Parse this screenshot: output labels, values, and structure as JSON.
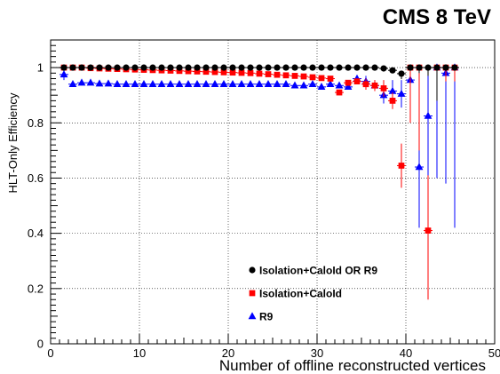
{
  "header": {
    "title": "CMS 8 TeV"
  },
  "chart_data": {
    "type": "scatter",
    "title": "",
    "xlabel": "Number of offline reconstructed vertices",
    "ylabel": "HLT-Only Efficiency",
    "xlim": [
      0,
      50
    ],
    "ylim": [
      0,
      1.1
    ],
    "x_ticks": [
      0,
      10,
      20,
      30,
      40,
      50
    ],
    "y_ticks": [
      0,
      0.2,
      0.4,
      0.6,
      0.8,
      1
    ],
    "x_tick_labels": [
      "0",
      "10",
      "20",
      "30",
      "40",
      "50"
    ],
    "y_tick_labels": [
      "0",
      "0.2",
      "0.4",
      "0.6",
      "0.8",
      "1"
    ],
    "grid": true,
    "legend_position": "lower-middle",
    "series": [
      {
        "name": "Isolation+CaloId OR R9",
        "color": "#000000",
        "marker": "circle",
        "x": [
          1.5,
          2.5,
          3.5,
          4.5,
          5.5,
          6.5,
          7.5,
          8.5,
          9.5,
          10.5,
          11.5,
          12.5,
          13.5,
          14.5,
          15.5,
          16.5,
          17.5,
          18.5,
          19.5,
          20.5,
          21.5,
          22.5,
          23.5,
          24.5,
          25.5,
          26.5,
          27.5,
          28.5,
          29.5,
          30.5,
          31.5,
          32.5,
          33.5,
          34.5,
          35.5,
          36.5,
          37.5,
          38.5,
          39.5,
          40.5,
          41.5,
          42.5,
          43.5,
          44.5,
          45.5
        ],
        "y": [
          1.0,
          1.0,
          1.0,
          1.0,
          1.0,
          1.0,
          1.0,
          1.0,
          1.0,
          1.0,
          1.0,
          1.0,
          1.0,
          1.0,
          1.0,
          1.0,
          1.0,
          1.0,
          1.0,
          1.0,
          1.0,
          1.0,
          1.0,
          1.0,
          1.0,
          1.0,
          1.0,
          1.0,
          1.0,
          1.0,
          1.0,
          1.0,
          1.0,
          1.0,
          1.0,
          1.0,
          0.997,
          0.99,
          0.978,
          1.0,
          1.0,
          1.0,
          1.0,
          1.0,
          1.0
        ],
        "err_low": [
          0,
          0,
          0,
          0,
          0,
          0,
          0,
          0,
          0,
          0,
          0,
          0,
          0,
          0,
          0,
          0,
          0,
          0,
          0,
          0,
          0,
          0,
          0,
          0,
          0,
          0,
          0,
          0,
          0,
          0,
          0,
          0,
          0,
          0,
          0,
          0,
          0.005,
          0.01,
          0.02,
          0.01,
          0.02,
          0.03,
          0.12,
          0.01,
          0.01
        ],
        "err_high": [
          0,
          0,
          0,
          0,
          0,
          0,
          0,
          0,
          0,
          0,
          0,
          0,
          0,
          0,
          0,
          0,
          0,
          0,
          0,
          0,
          0,
          0,
          0,
          0,
          0,
          0,
          0,
          0,
          0,
          0,
          0,
          0,
          0,
          0,
          0,
          0,
          0.003,
          0.005,
          0.01,
          0,
          0,
          0,
          0,
          0,
          0
        ]
      },
      {
        "name": "Isolation+CaloId",
        "color": "#ff0000",
        "marker": "square",
        "x": [
          1.5,
          2.5,
          3.5,
          4.5,
          5.5,
          6.5,
          7.5,
          8.5,
          9.5,
          10.5,
          11.5,
          12.5,
          13.5,
          14.5,
          15.5,
          16.5,
          17.5,
          18.5,
          19.5,
          20.5,
          21.5,
          22.5,
          23.5,
          24.5,
          25.5,
          26.5,
          27.5,
          28.5,
          29.5,
          30.5,
          31.5,
          32.5,
          33.5,
          34.5,
          35.5,
          36.5,
          37.5,
          38.5,
          39.5,
          40.5,
          41.5,
          42.5,
          43.5,
          44.5,
          45.5
        ],
        "y": [
          1.0,
          1.0,
          1.0,
          0.998,
          0.997,
          0.996,
          0.995,
          0.994,
          0.993,
          0.992,
          0.991,
          0.99,
          0.989,
          0.988,
          0.987,
          0.986,
          0.985,
          0.984,
          0.983,
          0.982,
          0.981,
          0.98,
          0.978,
          0.976,
          0.974,
          0.972,
          0.97,
          0.968,
          0.965,
          0.962,
          0.96,
          0.91,
          0.945,
          0.95,
          0.94,
          0.935,
          0.925,
          0.88,
          0.645,
          1.0,
          1.0,
          0.41,
          1.0,
          1.0,
          1.0
        ],
        "err_low": [
          0,
          0,
          0,
          0,
          0,
          0,
          0,
          0,
          0,
          0,
          0,
          0,
          0,
          0,
          0,
          0,
          0,
          0,
          0,
          0,
          0,
          0,
          0,
          0,
          0,
          0,
          0,
          0,
          0,
          0,
          0,
          0.01,
          0.01,
          0.01,
          0.02,
          0.02,
          0.03,
          0.03,
          0.08,
          0.2,
          0.3,
          0.25,
          0.1,
          0.05,
          0.05
        ],
        "err_high": [
          0,
          0,
          0,
          0,
          0,
          0,
          0,
          0,
          0,
          0,
          0,
          0,
          0,
          0,
          0,
          0,
          0,
          0,
          0,
          0,
          0,
          0,
          0,
          0,
          0,
          0,
          0,
          0,
          0,
          0,
          0,
          0.01,
          0.01,
          0.01,
          0.02,
          0.02,
          0.03,
          0.03,
          0.08,
          0,
          0,
          0.2,
          0,
          0,
          0
        ]
      },
      {
        "name": "R9",
        "color": "#0000ff",
        "marker": "triangle",
        "x": [
          1.5,
          2.5,
          3.5,
          4.5,
          5.5,
          6.5,
          7.5,
          8.5,
          9.5,
          10.5,
          11.5,
          12.5,
          13.5,
          14.5,
          15.5,
          16.5,
          17.5,
          18.5,
          19.5,
          20.5,
          21.5,
          22.5,
          23.5,
          24.5,
          25.5,
          26.5,
          27.5,
          28.5,
          29.5,
          30.5,
          31.5,
          32.5,
          33.5,
          34.5,
          35.5,
          36.5,
          37.5,
          38.5,
          39.5,
          40.5,
          41.5,
          42.5,
          43.5,
          44.5,
          45.5
        ],
        "y": [
          0.975,
          0.94,
          0.945,
          0.945,
          0.942,
          0.942,
          0.94,
          0.94,
          0.94,
          0.94,
          0.94,
          0.94,
          0.94,
          0.94,
          0.94,
          0.94,
          0.94,
          0.94,
          0.94,
          0.94,
          0.94,
          0.94,
          0.94,
          0.94,
          0.94,
          0.94,
          0.935,
          0.935,
          0.94,
          0.93,
          0.94,
          0.935,
          0.93,
          0.96,
          0.95,
          0.935,
          0.9,
          0.915,
          0.905,
          0.955,
          0.64,
          0.825,
          1.0,
          0.98,
          1.0
        ],
        "err_low": [
          0.02,
          0.01,
          0.01,
          0,
          0,
          0,
          0,
          0,
          0,
          0,
          0,
          0,
          0,
          0,
          0,
          0,
          0,
          0,
          0,
          0,
          0,
          0,
          0,
          0,
          0,
          0,
          0,
          0,
          0,
          0.01,
          0.01,
          0.01,
          0.01,
          0.01,
          0.02,
          0.02,
          0.03,
          0.04,
          0.05,
          0.06,
          0.22,
          0.32,
          0.4,
          0.4,
          0.58
        ],
        "err_high": [
          0.02,
          0.01,
          0.01,
          0,
          0,
          0,
          0,
          0,
          0,
          0,
          0,
          0,
          0,
          0,
          0,
          0,
          0,
          0,
          0,
          0,
          0,
          0,
          0,
          0,
          0,
          0,
          0,
          0,
          0,
          0.01,
          0.01,
          0.01,
          0.01,
          0.01,
          0.02,
          0.02,
          0.03,
          0.04,
          0.05,
          0.04,
          0.2,
          0.15,
          0,
          0.02,
          0
        ]
      }
    ]
  }
}
